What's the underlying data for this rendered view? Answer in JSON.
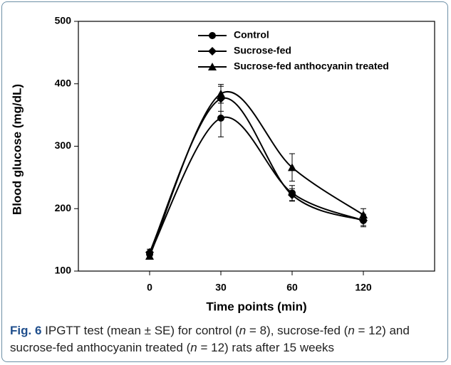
{
  "chart_data": {
    "type": "line",
    "x_label": "Time points (min)",
    "y_label": "Blood glucose (mg/dL)",
    "categories": [
      "0",
      "30",
      "60",
      "120"
    ],
    "series": [
      {
        "name": "Control",
        "color": "#000000",
        "marker": "circle",
        "values": [
          127,
          345,
          225,
          181
        ],
        "errors": [
          5,
          30,
          12,
          10
        ]
      },
      {
        "name": "Sucrose-fed",
        "color": "#000000",
        "marker": "diamond",
        "values": [
          130,
          376,
          222,
          181
        ],
        "errors": [
          5,
          20,
          10,
          8
        ]
      },
      {
        "name": "Sucrose-fed anthocyanin treated",
        "color": "#000000",
        "marker": "triangle",
        "values": [
          124,
          384,
          266,
          190
        ],
        "errors": [
          5,
          15,
          22,
          10
        ]
      }
    ],
    "ylim": [
      100,
      500
    ],
    "yticks": [
      100,
      200,
      300,
      400,
      500
    ]
  },
  "caption": {
    "label": "Fig. 6",
    "text": [
      "IPGTT test (mean ± SE) for control (",
      "n",
      " = 8), sucrose-fed (",
      "n",
      " = 12) and sucrose-fed anthocyanin treated (",
      "n",
      " = 12) rats after 15 weeks"
    ]
  }
}
